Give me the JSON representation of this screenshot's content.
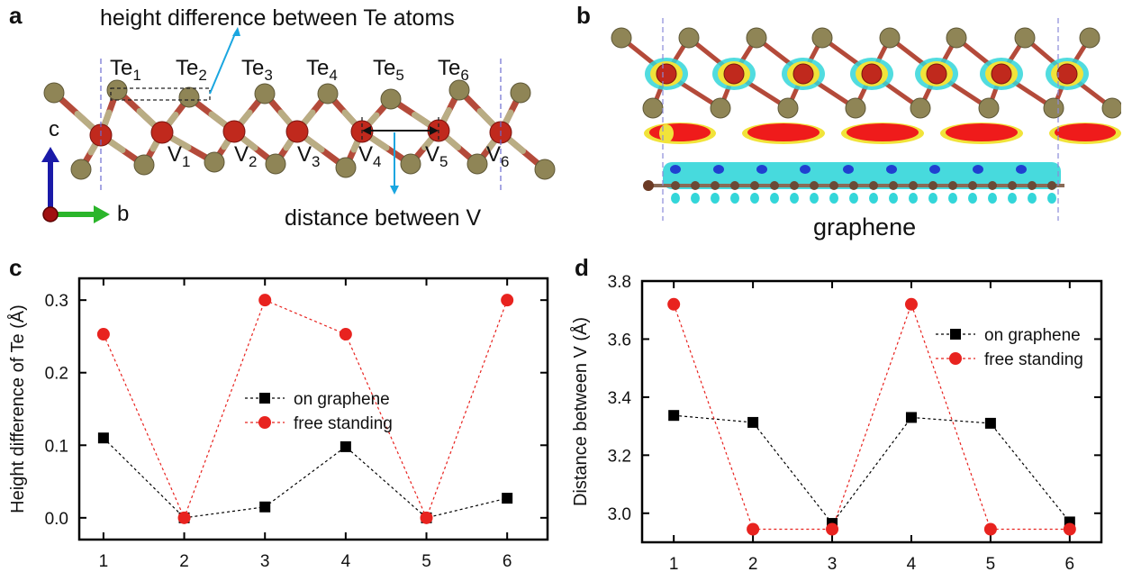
{
  "panels": {
    "a": {
      "letter": "a",
      "annotation_top": "height difference between Te atoms",
      "annotation_bottom": "distance between V",
      "te_labels": [
        "Te1",
        "Te2",
        "Te3",
        "Te4",
        "Te5",
        "Te6"
      ],
      "v_labels": [
        "V1",
        "V2",
        "V3",
        "V4",
        "V5",
        "V6"
      ],
      "axis_c": "c",
      "axis_b": "b"
    },
    "b": {
      "letter": "b",
      "caption": "graphene"
    },
    "c": {
      "letter": "c"
    },
    "d": {
      "letter": "d"
    }
  },
  "colors": {
    "te_atom": "#8f8556",
    "v_atom": "#c0291d",
    "bond": "#b44a3a",
    "series_graphene": "#000000",
    "series_free": "#e8231f",
    "arrow_blue": "#1aa6e0",
    "axis_c": "#1a1aa8",
    "axis_b": "#2ab52a",
    "iso_cyan": "#33d6d9",
    "iso_yellow": "#f1e33a",
    "iso_red": "#ef1b1b",
    "graphene_sheet": "#8a6a56"
  },
  "chart_data": [
    {
      "type": "line",
      "panel": "c",
      "ylabel": "Height difference of Te (Å)",
      "xlabel": "",
      "x": [
        1,
        2,
        3,
        4,
        5,
        6
      ],
      "xlim": [
        0.7,
        6.5
      ],
      "ylim": [
        -0.03,
        0.33
      ],
      "yticks": [
        0.0,
        0.1,
        0.2,
        0.3
      ],
      "ytick_labels": [
        "0.0",
        "0.1",
        "0.2",
        "0.3"
      ],
      "xtick_labels": [
        "1",
        "2",
        "3",
        "4",
        "5",
        "6"
      ],
      "legend": "center-right",
      "series": [
        {
          "name": "on graphene",
          "marker": "square",
          "values": [
            0.11,
            0.0,
            0.015,
            0.098,
            0.0,
            0.027
          ]
        },
        {
          "name": "free standing",
          "marker": "circle",
          "values": [
            0.253,
            0.0,
            0.3,
            0.253,
            0.0,
            0.3
          ]
        }
      ]
    },
    {
      "type": "line",
      "panel": "d",
      "ylabel": "Distance between V (Å)",
      "xlabel": "",
      "x": [
        1,
        2,
        3,
        4,
        5,
        6
      ],
      "xlim": [
        0.6,
        6.4
      ],
      "ylim": [
        2.9,
        3.8
      ],
      "yticks": [
        3.0,
        3.2,
        3.4,
        3.6,
        3.8
      ],
      "ytick_labels": [
        "3.0",
        "3.2",
        "3.4",
        "3.6",
        "3.8"
      ],
      "xtick_labels": [
        "1",
        "2",
        "3",
        "4",
        "5",
        "6"
      ],
      "legend": "top-right",
      "series": [
        {
          "name": "on graphene",
          "marker": "square",
          "values": [
            3.337,
            3.313,
            2.965,
            3.33,
            3.31,
            2.97
          ]
        },
        {
          "name": "free standing",
          "marker": "circle",
          "values": [
            3.72,
            2.945,
            2.945,
            3.72,
            2.945,
            2.945
          ]
        }
      ]
    }
  ]
}
